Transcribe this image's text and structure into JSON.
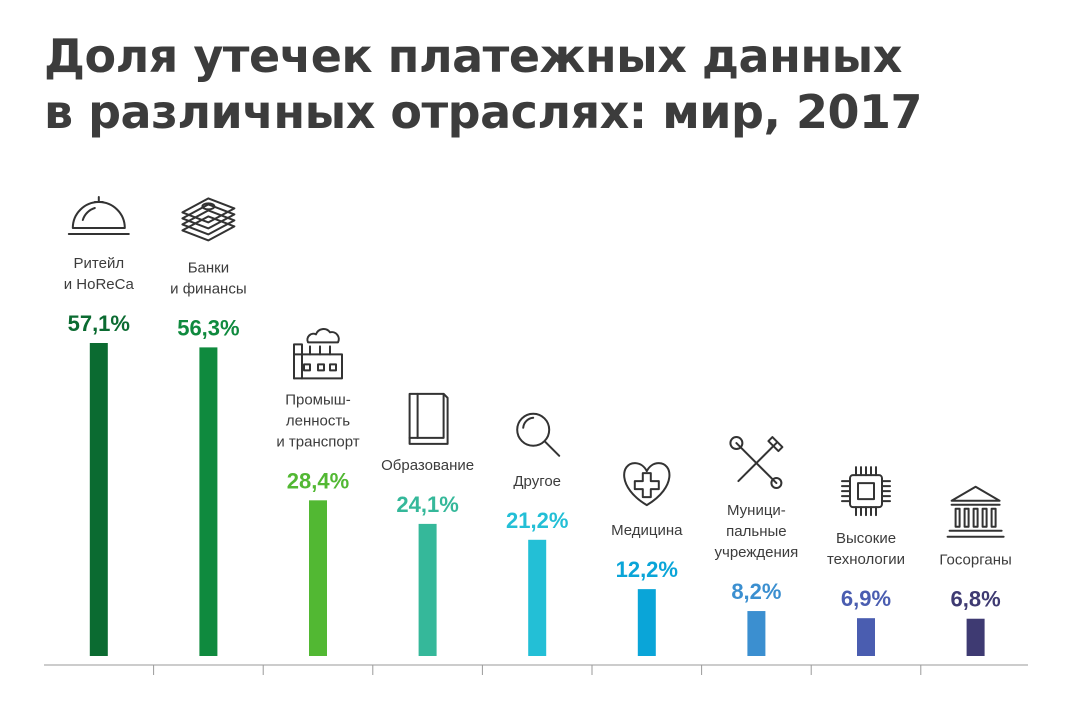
{
  "title_lines": [
    "Доля утечек платежных данных",
    "в различных отраслях: мир, 2017"
  ],
  "chart_data": {
    "type": "bar",
    "title": "Доля утечек платежных данных в различных отраслях: мир, 2017",
    "categories": [
      [
        "Ритейл",
        "и HoReCa"
      ],
      [
        "Банки",
        "и финансы"
      ],
      [
        "Промыш-",
        "ленность",
        "и транспорт"
      ],
      [
        "Образование"
      ],
      [
        "Другое"
      ],
      [
        "Медицина"
      ],
      [
        "Муници-",
        "пальные",
        "учреждения"
      ],
      [
        "Высокие",
        "технологии"
      ],
      [
        "Госорганы"
      ]
    ],
    "values": [
      57.1,
      56.3,
      28.4,
      24.1,
      21.2,
      12.2,
      8.2,
      6.9,
      6.8
    ],
    "value_labels": [
      "57,1%",
      "56,3%",
      "28,4%",
      "24,1%",
      "21,2%",
      "12,2%",
      "8,2%",
      "6,9%",
      "6,8%"
    ],
    "colors": [
      "#0b6b31",
      "#0f8a3e",
      "#52b833",
      "#35b89a",
      "#23bfd6",
      "#0aa5d8",
      "#3b8fd0",
      "#4a5db0",
      "#3e3a72"
    ],
    "icons": [
      "cloche-icon",
      "money-stack-icon",
      "factory-icon",
      "book-icon",
      "magnifier-icon",
      "heart-cross-icon",
      "tools-icon",
      "chip-icon",
      "columns-building-icon"
    ],
    "ylim": [
      0,
      57.1
    ],
    "grid": false,
    "legend": "none"
  }
}
